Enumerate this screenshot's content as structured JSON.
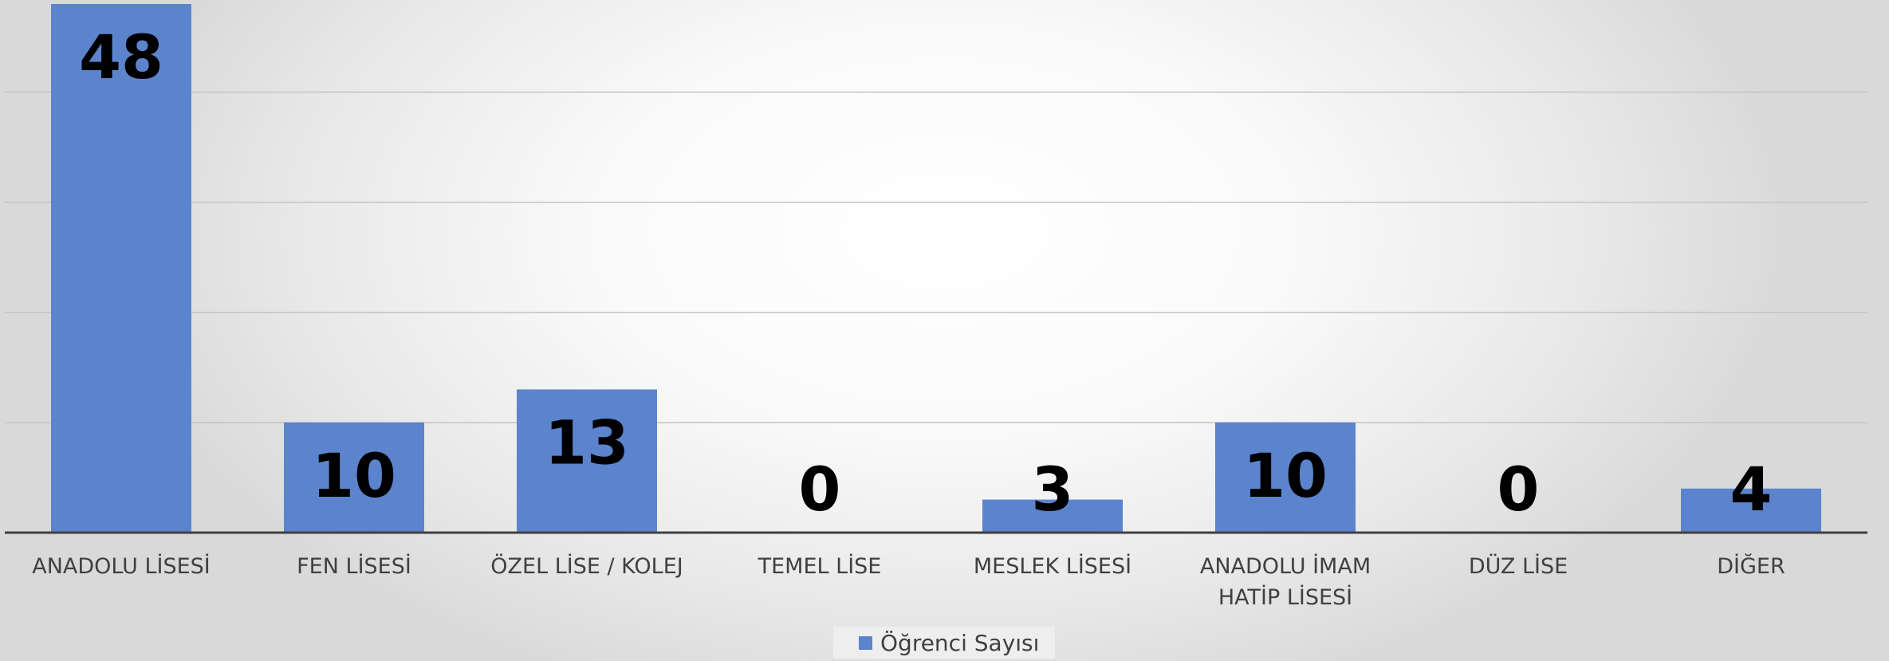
{
  "chart_data": {
    "type": "bar",
    "categories": [
      "ANADOLU LİSESİ",
      "FEN LİSESİ",
      "ÖZEL LİSE / KOLEJ",
      "TEMEL LİSE",
      "MESLEK LİSESİ",
      "ANADOLU İMAM HATİP LİSESİ",
      "DÜZ LİSE",
      "DİĞER"
    ],
    "series": [
      {
        "name": "Öğrenci Sayısı",
        "values": [
          48,
          10,
          13,
          0,
          3,
          10,
          0,
          4
        ],
        "color": "#5b84cd"
      }
    ],
    "data_labels": [
      "48",
      "10",
      "13",
      "0",
      "3",
      "10",
      "0",
      "4"
    ],
    "ylim": [
      0,
      48
    ],
    "gridline_step": 10,
    "grid": true,
    "legend_position": "bottom-center",
    "title": "",
    "xlabel": "",
    "ylabel": ""
  }
}
